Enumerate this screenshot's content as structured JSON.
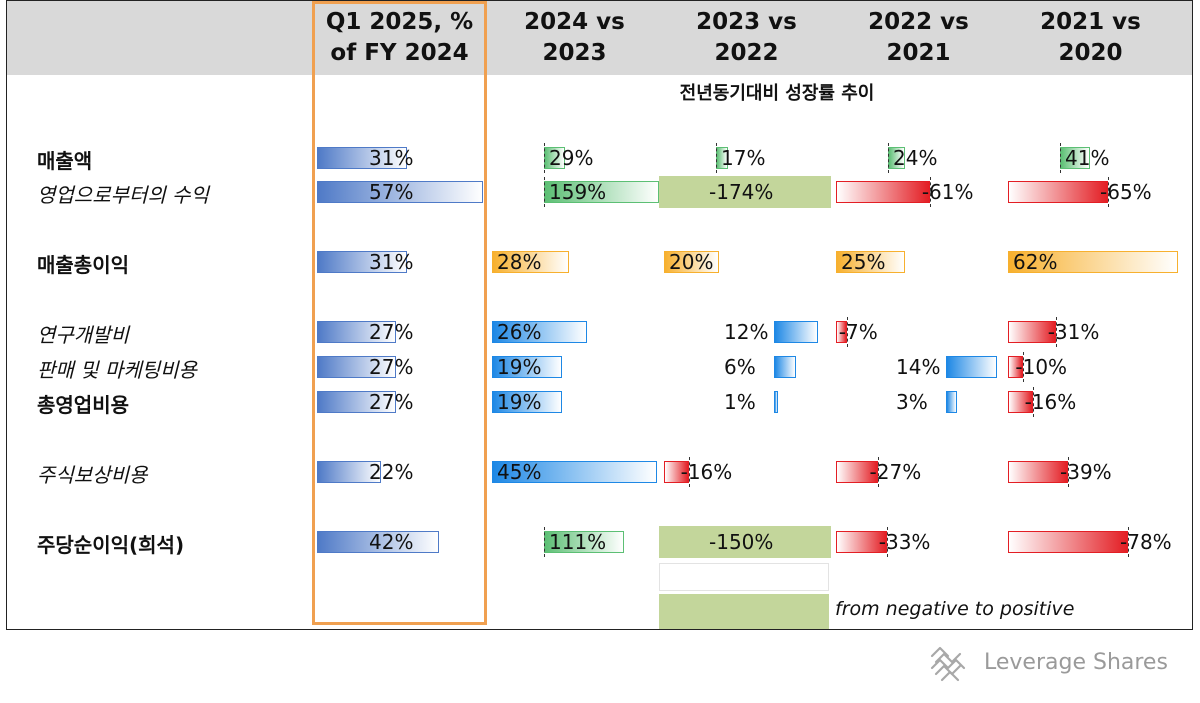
{
  "chart_data": {
    "type": "table",
    "title": "",
    "subtitle": "전년동기대비 성장률 추이",
    "columns": [
      "Q1 2025, %\nof FY 2024",
      "2024 vs\n2023",
      "2023 vs\n2022",
      "2022 vs\n2021",
      "2021 vs\n2020"
    ],
    "rows": [
      {
        "label": "매출액",
        "values": [
          31,
          29,
          17,
          24,
          41
        ],
        "labels": [
          "31%",
          "29%",
          "17%",
          "24%",
          "41%"
        ]
      },
      {
        "label": "영업으로부터의 수익",
        "values": [
          57,
          159,
          -174,
          -61,
          -65
        ],
        "labels": [
          "57%",
          "159%",
          "-174%",
          "-61%",
          "-65%"
        ]
      },
      {
        "label": "매출총이익",
        "values": [
          31,
          28,
          20,
          25,
          62
        ],
        "labels": [
          "31%",
          "28%",
          "20%",
          "25%",
          "62%"
        ]
      },
      {
        "label": "연구개발비",
        "values": [
          27,
          26,
          12,
          -7,
          -31
        ],
        "labels": [
          "27%",
          "26%",
          "12%",
          "-7%",
          "-31%"
        ]
      },
      {
        "label": "판매 및 마케팅비용",
        "values": [
          27,
          19,
          6,
          14,
          -10
        ],
        "labels": [
          "27%",
          "19%",
          "6%",
          "14%",
          "-10%"
        ]
      },
      {
        "label": "총영업비용",
        "values": [
          27,
          19,
          1,
          3,
          -16
        ],
        "labels": [
          "27%",
          "19%",
          "1%",
          "3%",
          "-16%"
        ]
      },
      {
        "label": "주식보상비용",
        "values": [
          22,
          45,
          -16,
          -27,
          -39
        ],
        "labels": [
          "22%",
          "45%",
          "-16%",
          "-27%",
          "-39%"
        ]
      },
      {
        "label": "주당순이익(희석)",
        "values": [
          42,
          111,
          -150,
          -33,
          -78
        ],
        "labels": [
          "42%",
          "111%",
          "-150%",
          "-33%",
          "-78%"
        ]
      }
    ],
    "legend": [
      {
        "label": "from negative to positive",
        "color": "#c3d69b"
      }
    ]
  },
  "brand": {
    "name": "Leverage Shares",
    "icon": "leverage-shares-logo-icon"
  },
  "colors": {
    "q1": "#4f7ac7",
    "revenue_green": "#5cbf74",
    "gross_orange": "#f7b02e",
    "opex_blue": "#1e88e5",
    "negative_red": "#e31e24",
    "neg_to_pos": "#c3d69b",
    "highlight_border": "#f0a050"
  }
}
